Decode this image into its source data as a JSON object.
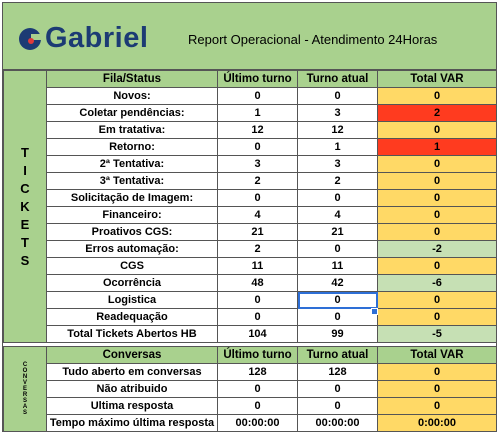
{
  "brand": {
    "logo_text": "Gabriel",
    "accent": "#1c3b74",
    "dot_color": "#e03b3b"
  },
  "report_title": "Report Operacional - Atendimento 24Horas",
  "tickets": {
    "side_label": [
      "T",
      "I",
      "C",
      "K",
      "E",
      "T",
      "S"
    ],
    "headers": [
      "Fila/Status",
      "Último turno",
      "Turno atual",
      "Total VAR"
    ],
    "rows": [
      {
        "label": "Novos:",
        "ultimo": "0",
        "atual": "0",
        "var": "0",
        "var_status": "y"
      },
      {
        "label": "Coletar pendências:",
        "ultimo": "1",
        "atual": "3",
        "var": "2",
        "var_status": "r"
      },
      {
        "label": "Em tratativa:",
        "ultimo": "12",
        "atual": "12",
        "var": "0",
        "var_status": "y"
      },
      {
        "label": "Retorno:",
        "ultimo": "0",
        "atual": "1",
        "var": "1",
        "var_status": "r"
      },
      {
        "label": "2ª Tentativa:",
        "ultimo": "3",
        "atual": "3",
        "var": "0",
        "var_status": "y"
      },
      {
        "label": "3ª Tentativa:",
        "ultimo": "2",
        "atual": "2",
        "var": "0",
        "var_status": "y"
      },
      {
        "label": "Solicitação de Imagem:",
        "ultimo": "0",
        "atual": "0",
        "var": "0",
        "var_status": "y"
      },
      {
        "label": "Financeiro:",
        "ultimo": "4",
        "atual": "4",
        "var": "0",
        "var_status": "y"
      },
      {
        "label": "Proativos CGS:",
        "ultimo": "21",
        "atual": "21",
        "var": "0",
        "var_status": "y"
      },
      {
        "label": "Erros automação:",
        "ultimo": "2",
        "atual": "0",
        "var": "-2",
        "var_status": "g"
      },
      {
        "label": "CGS",
        "ultimo": "11",
        "atual": "11",
        "var": "0",
        "var_status": "y"
      },
      {
        "label": "Ocorrência",
        "ultimo": "48",
        "atual": "42",
        "var": "-6",
        "var_status": "g"
      },
      {
        "label": "Logistica",
        "ultimo": "0",
        "atual": "0",
        "var": "0",
        "var_status": "y"
      },
      {
        "label": "Readequação",
        "ultimo": "0",
        "atual": "0",
        "var": "0",
        "var_status": "y"
      },
      {
        "label": "Total Tickets Abertos HB",
        "ultimo": "104",
        "atual": "99",
        "var": "-5",
        "var_status": "g"
      }
    ]
  },
  "conversas": {
    "side_label": [
      "C",
      "O",
      "N",
      "V",
      "E",
      "R",
      "S",
      "A",
      "S"
    ],
    "headers": [
      "Conversas",
      "Último turno",
      "Turno atual",
      "Total VAR"
    ],
    "rows": [
      {
        "label": "Tudo aberto em conversas",
        "ultimo": "128",
        "atual": "128",
        "var": "0",
        "var_status": "y"
      },
      {
        "label": "Não atribuido",
        "ultimo": "0",
        "atual": "0",
        "var": "0",
        "var_status": "y"
      },
      {
        "label": "Ultima resposta",
        "ultimo": "0",
        "atual": "0",
        "var": "0",
        "var_status": "y"
      },
      {
        "label": "Tempo máximo última resposta",
        "ultimo": "00:00:00",
        "atual": "00:00:00",
        "var": "0:00:00",
        "var_status": "y"
      }
    ]
  },
  "colors": {
    "header_green": "#a9d18e",
    "var_yellow": "#ffd966",
    "var_red": "#ff3b1f",
    "var_green": "#c6e0b4",
    "selection_blue": "#2e6fd6"
  },
  "selected_cell": {
    "section": "tickets",
    "row": 12,
    "column": "Turno atual"
  }
}
